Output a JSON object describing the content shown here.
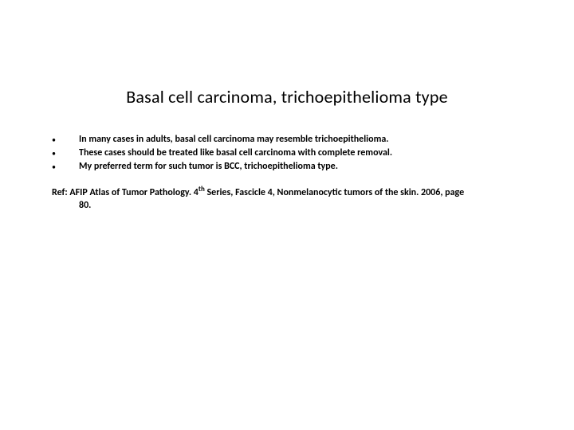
{
  "slide": {
    "background_color": "#ffffff",
    "text_color": "#000000",
    "title": {
      "text": "Basal cell carcinoma, trichoepithelioma type",
      "fontsize": 22,
      "fontweight": 400
    },
    "bullets": {
      "marker": "•",
      "fontsize": 12,
      "fontweight": 700,
      "items": [
        "In many cases in adults, basal cell carcinoma  may resemble trichoepithelioma.",
        "These cases should be treated like basal cell carcinoma with complete removal.",
        "My preferred term for such tumor is BCC, trichoepithelioma type."
      ]
    },
    "reference": {
      "label": "Ref:",
      "line1": "AFIP Atlas of Tumor Pathology. 4",
      "superscript": "th",
      "line1_tail": " Series, Fascicle 4, Nonmelanocytic tumors of the skin. 2006, page",
      "line2": "80.",
      "fontsize": 12,
      "fontweight": 700
    }
  }
}
